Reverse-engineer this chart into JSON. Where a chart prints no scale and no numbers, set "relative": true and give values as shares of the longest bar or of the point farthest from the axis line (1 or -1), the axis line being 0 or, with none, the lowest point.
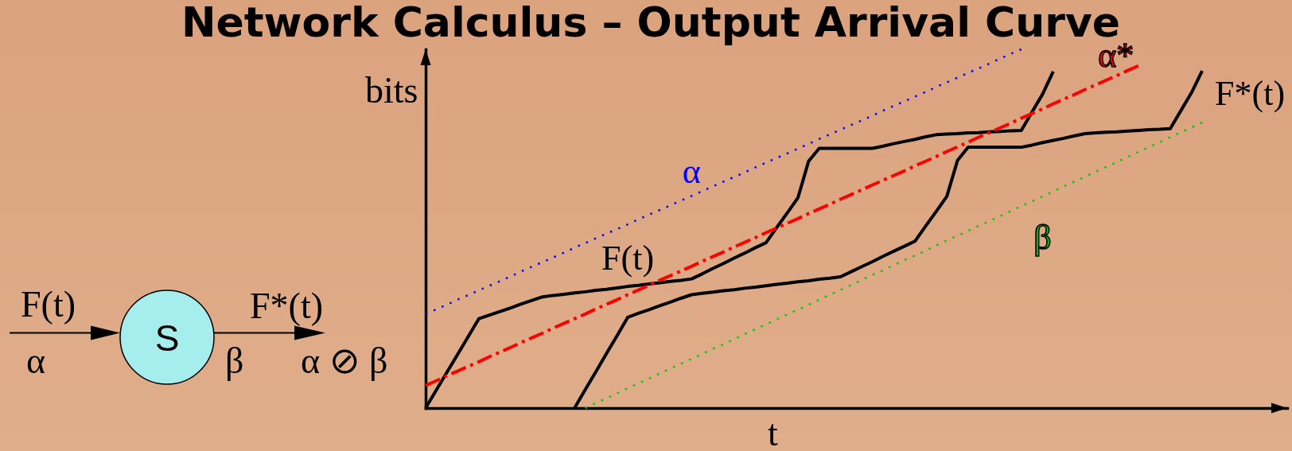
{
  "chart_data": {
    "type": "line",
    "title": "Network Calculus – Output Arrival Curve",
    "xlabel": "t",
    "ylabel": "bits",
    "relative": true,
    "categories": [
      null,
      null,
      null,
      null,
      null,
      null,
      null,
      null,
      null,
      null,
      null,
      null,
      null,
      null,
      null,
      null,
      null,
      null,
      null,
      null,
      null,
      null,
      null,
      null,
      null,
      null,
      null,
      null,
      null,
      null,
      null,
      null,
      null,
      null,
      null,
      null,
      null,
      null,
      null,
      null,
      null,
      null,
      null,
      null,
      null,
      null,
      null,
      null,
      null,
      null,
      null,
      null,
      null,
      null,
      null,
      null,
      null,
      null,
      null,
      null,
      null,
      null,
      null,
      null,
      null,
      null,
      null,
      null,
      null,
      null,
      null,
      null,
      null,
      null,
      null,
      null,
      null,
      null,
      null,
      null,
      null,
      null
    ],
    "series": [
      {
        "name": "F(t)",
        "color": "#000000",
        "line_style": "solid",
        "values": [
          0,
          0.05,
          0.1,
          0.149,
          0.199,
          0.249,
          0.259,
          0.269,
          0.279,
          0.29,
          0.3,
          0.31,
          0.314,
          0.317,
          0.321,
          0.324,
          0.328,
          0.331,
          0.335,
          0.339,
          0.342,
          0.346,
          0.349,
          0.353,
          0.356,
          0.36,
          0.374,
          0.389,
          0.403,
          0.418,
          0.432,
          0.447,
          0.461,
          0.503,
          0.544,
          0.586,
          0.688,
          0.724,
          0.724,
          0.724,
          0.724,
          0.724,
          0.724,
          0.73,
          0.737,
          0.743,
          0.749,
          0.756,
          0.762,
          0.764,
          0.765,
          0.767,
          0.768,
          0.77,
          0.771,
          0.773,
          0.774,
          0.825,
          0.875,
          0.938,
          null,
          null,
          null,
          null,
          null,
          null,
          null,
          null,
          null,
          null,
          null,
          null,
          null,
          null,
          null,
          null,
          null,
          null,
          null,
          null,
          null,
          null
        ]
      },
      {
        "name": "F*(t)",
        "color": "#000000",
        "line_style": "solid",
        "values": [
          null,
          null,
          null,
          null,
          null,
          null,
          null,
          null,
          null,
          null,
          null,
          null,
          null,
          null,
          0,
          0.051,
          0.101,
          0.152,
          0.202,
          0.253,
          0.264,
          0.274,
          0.285,
          0.295,
          0.306,
          0.316,
          0.32,
          0.323,
          0.327,
          0.33,
          0.334,
          0.337,
          0.341,
          0.345,
          0.348,
          0.352,
          0.355,
          0.359,
          0.362,
          0.366,
          0.38,
          0.394,
          0.408,
          0.423,
          0.437,
          0.451,
          0.465,
          0.507,
          0.548,
          0.59,
          0.69,
          0.727,
          0.727,
          0.727,
          0.727,
          0.727,
          0.727,
          0.733,
          0.74,
          0.746,
          0.752,
          0.759,
          0.765,
          0.767,
          0.769,
          0.77,
          0.772,
          0.774,
          0.776,
          0.777,
          0.779,
          0.829,
          0.879,
          0.94,
          null,
          null,
          null,
          null,
          null,
          null,
          null,
          null
        ]
      },
      {
        "name": "α",
        "color": "#0000ff",
        "line_style": "dotted",
        "values": [
          0.262,
          0.275,
          0.288,
          0.302,
          0.315,
          0.328,
          0.341,
          0.354,
          0.367,
          0.381,
          0.394,
          0.407,
          0.42,
          0.433,
          0.447,
          0.46,
          0.473,
          0.486,
          0.499,
          0.512,
          0.526,
          0.539,
          0.552,
          0.565,
          0.578,
          0.591,
          0.605,
          0.618,
          0.631,
          0.644,
          0.657,
          0.671,
          0.684,
          0.697,
          0.71,
          0.723,
          0.736,
          0.75,
          0.763,
          0.776,
          0.789,
          0.802,
          0.815,
          0.829,
          0.842,
          0.855,
          0.868,
          0.881,
          0.895,
          0.908,
          0.921,
          0.934,
          0.947,
          0.96,
          0.974,
          0.987,
          1,
          null,
          null,
          null,
          null,
          null,
          null,
          null,
          null,
          null,
          null,
          null,
          null,
          null,
          null,
          null,
          null,
          null,
          null,
          null,
          null,
          null,
          null,
          null,
          null,
          null
        ]
      },
      {
        "name": "α*",
        "color": "#ff0000",
        "line_style": "dashdot",
        "values": [
          0.063,
          0.076,
          0.09,
          0.103,
          0.116,
          0.129,
          0.143,
          0.156,
          0.169,
          0.183,
          0.196,
          0.209,
          0.223,
          0.236,
          0.249,
          0.262,
          0.276,
          0.289,
          0.302,
          0.316,
          0.329,
          0.342,
          0.356,
          0.369,
          0.382,
          0.395,
          0.409,
          0.422,
          0.435,
          0.449,
          0.462,
          0.475,
          0.489,
          0.502,
          0.515,
          0.528,
          0.542,
          0.555,
          0.568,
          0.582,
          0.595,
          0.608,
          0.622,
          0.635,
          0.648,
          0.661,
          0.675,
          0.688,
          0.701,
          0.715,
          0.728,
          0.741,
          0.755,
          0.768,
          0.781,
          0.794,
          0.808,
          0.821,
          0.834,
          0.848,
          0.861,
          0.874,
          0.888,
          0.901,
          0.914,
          0.927,
          0.941,
          0.954,
          null,
          null,
          null,
          null,
          null,
          null,
          null,
          null,
          null,
          null,
          null,
          null,
          null,
          null
        ]
      },
      {
        "name": "β",
        "color": "#00cc00",
        "line_style": "dotted",
        "values": [
          null,
          null,
          null,
          null,
          null,
          null,
          null,
          null,
          null,
          null,
          null,
          null,
          null,
          null,
          null,
          0,
          0.014,
          0.027,
          0.041,
          0.055,
          0.069,
          0.082,
          0.096,
          0.11,
          0.124,
          0.137,
          0.151,
          0.165,
          0.178,
          0.192,
          0.206,
          0.22,
          0.233,
          0.247,
          0.261,
          0.274,
          0.288,
          0.302,
          0.316,
          0.329,
          0.343,
          0.357,
          0.371,
          0.384,
          0.398,
          0.412,
          0.425,
          0.439,
          0.453,
          0.467,
          0.48,
          0.494,
          0.508,
          0.521,
          0.535,
          0.549,
          0.563,
          0.576,
          0.59,
          0.604,
          0.618,
          0.631,
          0.645,
          0.659,
          0.672,
          0.686,
          0.7,
          0.714,
          0.727,
          0.741,
          0.755,
          0.769,
          0.782,
          0.796,
          null,
          null,
          null,
          null,
          null,
          null,
          null,
          null
        ]
      }
    ],
    "annotations": [
      "F(t)",
      "α",
      "S",
      "F*(t)",
      "β",
      "α ⊘ β"
    ]
  }
}
